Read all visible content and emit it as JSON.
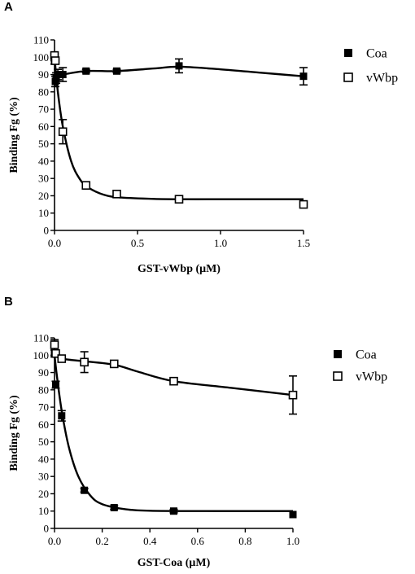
{
  "chart_data": [
    {
      "panel": "A",
      "type": "line",
      "xlabel": "GST-vWbp (μM)",
      "ylabel": "Binding Fg (%)",
      "xlim": [
        0,
        1.5
      ],
      "ylim": [
        0,
        110
      ],
      "xticks": [
        "0.0",
        "0.5",
        "1.0",
        "1.5"
      ],
      "xtick_values": [
        0,
        0.5,
        1.0,
        1.5
      ],
      "yticks": [
        "0",
        "10",
        "20",
        "30",
        "40",
        "50",
        "60",
        "70",
        "80",
        "90",
        "100",
        "110"
      ],
      "ytick_values": [
        0,
        10,
        20,
        30,
        40,
        50,
        60,
        70,
        80,
        90,
        100,
        110
      ],
      "legend": "top-right",
      "series": [
        {
          "name": "Coa",
          "marker": "filled-square",
          "points": [
            {
              "x": 0.0,
              "y": 100,
              "err": 2
            },
            {
              "x": 0.0,
              "y": 98,
              "err": 2
            },
            {
              "x": 0.005,
              "y": 86,
              "err": 3
            },
            {
              "x": 0.01,
              "y": 88,
              "err": 3
            },
            {
              "x": 0.02,
              "y": 90,
              "err": 3
            },
            {
              "x": 0.05,
              "y": 90,
              "err": 4
            },
            {
              "x": 0.19,
              "y": 92,
              "err": 1
            },
            {
              "x": 0.375,
              "y": 92,
              "err": 1
            },
            {
              "x": 0.75,
              "y": 95,
              "err": 4
            },
            {
              "x": 1.5,
              "y": 89,
              "err": 5
            }
          ],
          "curve": [
            [
              0.0,
              84
            ],
            [
              0.02,
              89
            ],
            [
              0.05,
              90
            ],
            [
              0.19,
              92
            ],
            [
              0.375,
              92
            ],
            [
              0.6,
              93.5
            ],
            [
              0.75,
              94.5
            ],
            [
              1.0,
              93
            ],
            [
              1.25,
              91
            ],
            [
              1.5,
              89
            ]
          ]
        },
        {
          "name": "vWbp",
          "marker": "open-square",
          "points": [
            {
              "x": 0.0,
              "y": 101,
              "err": 0
            },
            {
              "x": 0.005,
              "y": 98,
              "err": 0
            },
            {
              "x": 0.05,
              "y": 57,
              "err": 7
            },
            {
              "x": 0.19,
              "y": 26,
              "err": 1
            },
            {
              "x": 0.375,
              "y": 21,
              "err": 1
            },
            {
              "x": 0.75,
              "y": 18,
              "err": 1
            },
            {
              "x": 1.5,
              "y": 15,
              "err": 1
            }
          ],
          "curve": [
            [
              0.0,
              100
            ],
            [
              0.02,
              80
            ],
            [
              0.05,
              60
            ],
            [
              0.1,
              40
            ],
            [
              0.15,
              30
            ],
            [
              0.2,
              25
            ],
            [
              0.3,
              20.5
            ],
            [
              0.4,
              19
            ],
            [
              0.6,
              18.2
            ],
            [
              0.8,
              18
            ],
            [
              1.0,
              18
            ],
            [
              1.5,
              18
            ]
          ]
        }
      ]
    },
    {
      "panel": "B",
      "type": "line",
      "xlabel": "GST-Coa (μM)",
      "ylabel": "Binding Fg (%)",
      "xlim": [
        0,
        1.0
      ],
      "ylim": [
        0,
        110
      ],
      "xticks": [
        "0.0",
        "0.2",
        "0.4",
        "0.6",
        "0.8",
        "1.0"
      ],
      "xtick_values": [
        0,
        0.2,
        0.4,
        0.6,
        0.8,
        1.0
      ],
      "yticks": [
        "0",
        "10",
        "20",
        "30",
        "40",
        "50",
        "60",
        "70",
        "80",
        "90",
        "100",
        "110"
      ],
      "ytick_values": [
        0,
        10,
        20,
        30,
        40,
        50,
        60,
        70,
        80,
        90,
        100,
        110
      ],
      "legend": "top-right",
      "series": [
        {
          "name": "Coa",
          "marker": "filled-square",
          "points": [
            {
              "x": 0.0,
              "y": 101,
              "err": 2
            },
            {
              "x": 0.005,
              "y": 83,
              "err": 2
            },
            {
              "x": 0.03,
              "y": 65,
              "err": 3
            },
            {
              "x": 0.125,
              "y": 22,
              "err": 1
            },
            {
              "x": 0.25,
              "y": 12,
              "err": 1
            },
            {
              "x": 0.5,
              "y": 10,
              "err": 1
            },
            {
              "x": 1.0,
              "y": 8,
              "err": 0
            }
          ],
          "curve": [
            [
              0.0,
              100
            ],
            [
              0.01,
              88
            ],
            [
              0.03,
              68
            ],
            [
              0.06,
              47
            ],
            [
              0.1,
              30
            ],
            [
              0.15,
              19
            ],
            [
              0.2,
              14
            ],
            [
              0.3,
              11
            ],
            [
              0.4,
              10.2
            ],
            [
              0.6,
              10
            ],
            [
              1.0,
              10
            ]
          ]
        },
        {
          "name": "vWbp",
          "marker": "open-square",
          "points": [
            {
              "x": 0.0,
              "y": 106,
              "err": 3
            },
            {
              "x": 0.005,
              "y": 101,
              "err": 2
            },
            {
              "x": 0.03,
              "y": 98,
              "err": 1
            },
            {
              "x": 0.125,
              "y": 96,
              "err": 6
            },
            {
              "x": 0.25,
              "y": 95,
              "err": 1
            },
            {
              "x": 0.5,
              "y": 85,
              "err": 1
            },
            {
              "x": 1.0,
              "y": 77,
              "err": 11
            }
          ],
          "curve": [
            [
              0.0,
              100
            ],
            [
              0.03,
              98
            ],
            [
              0.125,
              96.5
            ],
            [
              0.25,
              94.5
            ],
            [
              0.35,
              90.5
            ],
            [
              0.5,
              85
            ],
            [
              0.75,
              81
            ],
            [
              1.0,
              77
            ]
          ]
        }
      ]
    }
  ]
}
